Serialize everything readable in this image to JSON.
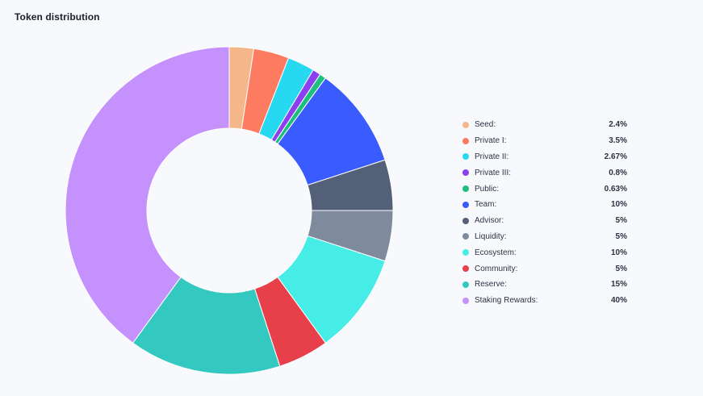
{
  "title": "Token distribution",
  "chart_data": {
    "type": "pie",
    "variant": "donut",
    "title": "Token distribution",
    "legend_position": "right",
    "categories": [
      "Seed:",
      "Private I:",
      "Private II:",
      "Private III:",
      "Public:",
      "Team:",
      "Advisor:",
      "Liquidity:",
      "Ecosystem:",
      "Community:",
      "Reserve:",
      "Staking Rewards:"
    ],
    "values": [
      2.4,
      3.5,
      2.67,
      0.8,
      0.63,
      10,
      5,
      5,
      10,
      5,
      15,
      40
    ],
    "value_labels": [
      "2.4%",
      "3.5%",
      "2.67%",
      "0.8%",
      "0.63%",
      "10%",
      "5%",
      "5%",
      "10%",
      "5%",
      "15%",
      "40%"
    ],
    "colors": [
      "#f5b78a",
      "#fd7c61",
      "#26d9f0",
      "#8b3ff0",
      "#1ebf7e",
      "#3a5cff",
      "#545f78",
      "#7f8a9c",
      "#46ede6",
      "#e8404a",
      "#33c9c1",
      "#c591fd"
    ]
  }
}
